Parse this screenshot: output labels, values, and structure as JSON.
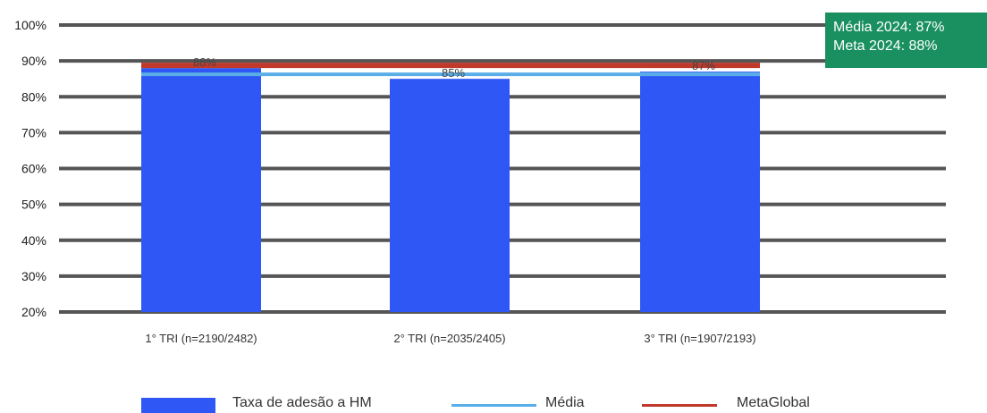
{
  "summary_box": {
    "line1": "Média 2024: 87%",
    "line2": "Meta 2024: 88%",
    "color": "#1a9060"
  },
  "legend": {
    "bar_label": "Taxa de adesão a HM",
    "avg_label": "Média",
    "goal_label": "MetaGlobal"
  },
  "colors": {
    "bar": "#2e57f5",
    "avg_line": "#5aaee8",
    "goal_line": "#c0392b",
    "grid": "#555555"
  },
  "chart_data": {
    "type": "bar",
    "categories": [
      "1° TRI (n=2190/2482)",
      "2° TRI (n=2035/2405)",
      "3° TRI (n=1907/2193)"
    ],
    "series": [
      {
        "name": "Taxa de adesão a HM",
        "values": [
          88,
          85,
          87
        ]
      },
      {
        "name": "Média",
        "values": [
          87,
          87,
          87
        ]
      },
      {
        "name": "MetaGlobal",
        "values": [
          88,
          88,
          88
        ]
      }
    ],
    "data_labels": [
      "88%",
      "85%",
      "87%"
    ],
    "y_ticks": [
      "20%",
      "30%",
      "40%",
      "50%",
      "60%",
      "70%",
      "80%",
      "90%",
      "100%"
    ],
    "ylim": [
      20,
      100
    ],
    "grid": true,
    "legend_position": "bottom"
  }
}
